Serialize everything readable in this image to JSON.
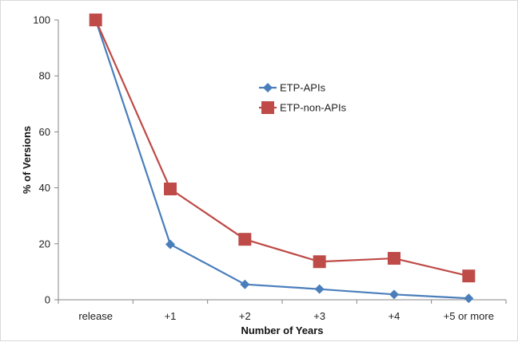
{
  "chart_data": {
    "type": "line",
    "title": "",
    "xlabel": "Number of Years",
    "ylabel": "% of Versions",
    "categories": [
      "release",
      "+1",
      "+2",
      "+3",
      "+4",
      "+5 or more"
    ],
    "ylim": [
      0,
      100
    ],
    "yticks": [
      0,
      20,
      40,
      60,
      80,
      100
    ],
    "grid": false,
    "legend_position": "center-right",
    "series": [
      {
        "name": "ETP-APIs",
        "marker": "diamond",
        "color": "#4a7ebb",
        "values": [
          100,
          19.8,
          5.5,
          3.8,
          1.9,
          0.5
        ]
      },
      {
        "name": "ETP-non-APIs",
        "marker": "square",
        "color": "#be4b48",
        "values": [
          100,
          39.6,
          21.6,
          13.6,
          14.8,
          8.5
        ]
      }
    ]
  }
}
